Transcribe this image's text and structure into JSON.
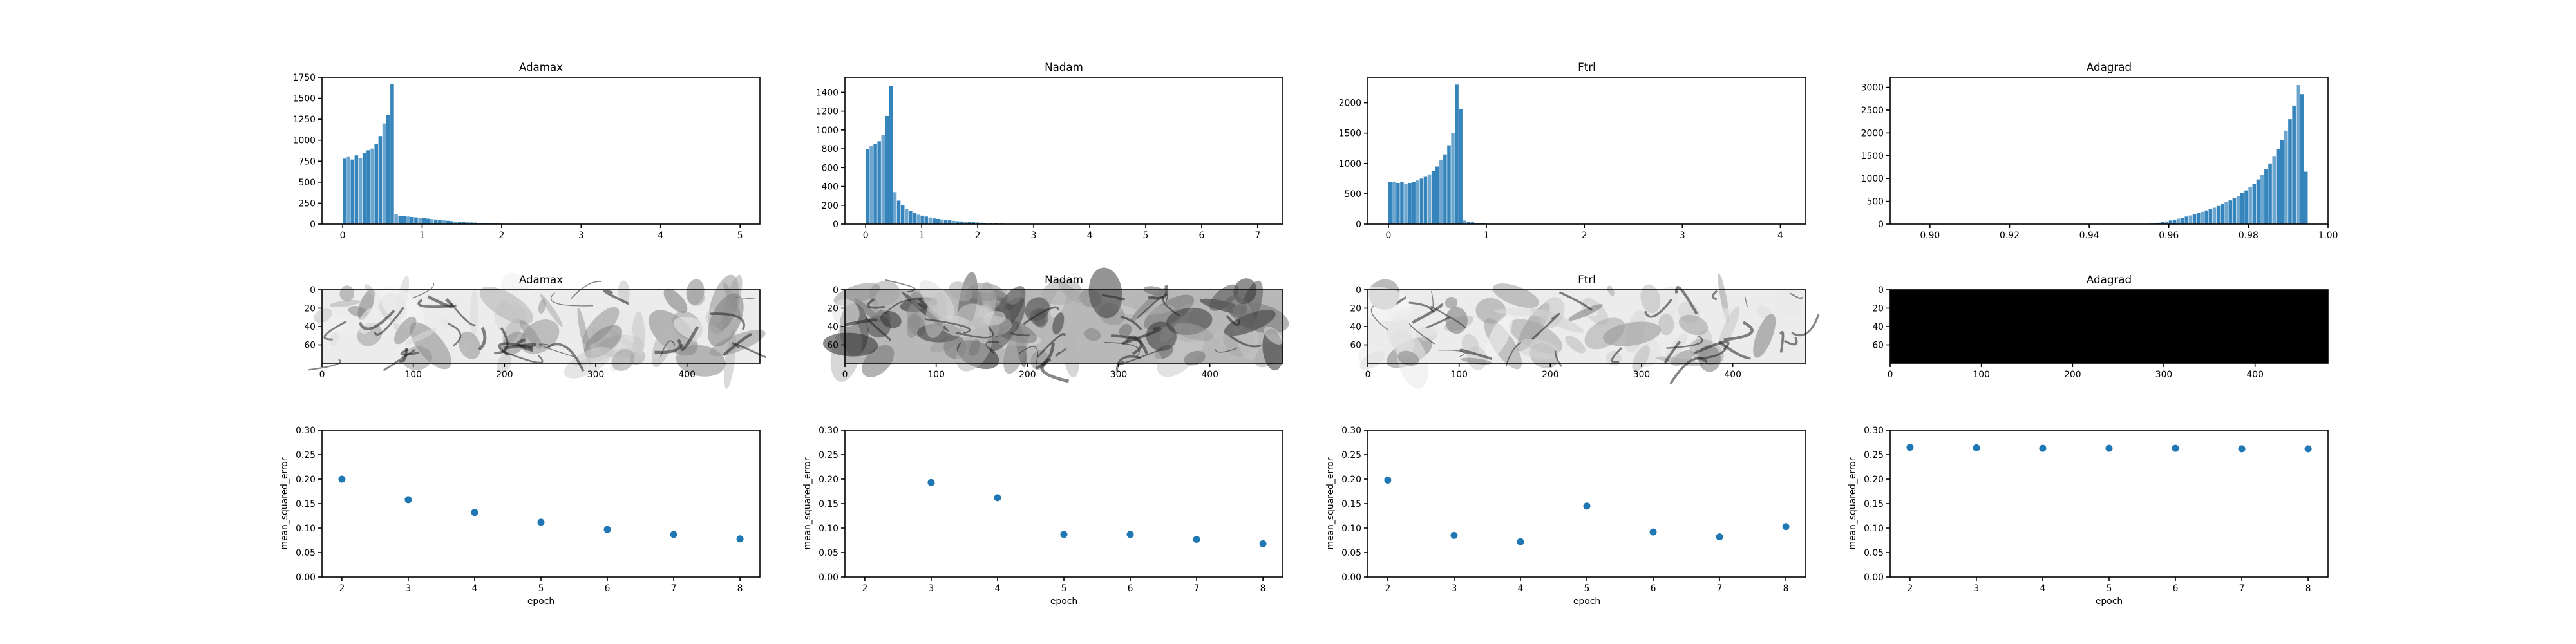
{
  "colors": {
    "accent": "#1f77b4",
    "bar": "#1f77b4",
    "image_dark": "#000000",
    "image_light": "#ffffff"
  },
  "chart_data": [
    {
      "id": "hist-adamax",
      "type": "bar",
      "title": "Adamax",
      "xlabel": "",
      "ylabel": "",
      "xlim": [
        -0.26,
        5.25
      ],
      "ylim": [
        0,
        1750
      ],
      "xticks": [
        0,
        1,
        2,
        3,
        4,
        5
      ],
      "xtick_labels": [
        "0",
        "1",
        "2",
        "3",
        "4",
        "5"
      ],
      "yticks": [
        0,
        250,
        500,
        750,
        1000,
        1250,
        1500,
        1750
      ],
      "ytick_labels": [
        "0",
        "250",
        "500",
        "750",
        "1000",
        "1250",
        "1500",
        "1750"
      ],
      "bin_width": 0.05,
      "categories": [
        0.0,
        0.05,
        0.1,
        0.15,
        0.2,
        0.25,
        0.3,
        0.35,
        0.4,
        0.45,
        0.5,
        0.55,
        0.6,
        0.65,
        0.7,
        0.75,
        0.8,
        0.85,
        0.9,
        0.95,
        1.0,
        1.05,
        1.1,
        1.15,
        1.2,
        1.25,
        1.3,
        1.35,
        1.4,
        1.45,
        1.5,
        1.55,
        1.6,
        1.65,
        1.7,
        1.75,
        1.8,
        1.85,
        1.9,
        1.95,
        2.0,
        2.1,
        2.2,
        2.3
      ],
      "values": [
        780,
        800,
        770,
        820,
        790,
        850,
        880,
        900,
        960,
        1050,
        1200,
        1300,
        1670,
        120,
        100,
        95,
        90,
        85,
        80,
        75,
        70,
        65,
        60,
        55,
        50,
        45,
        40,
        35,
        30,
        28,
        25,
        22,
        20,
        18,
        15,
        12,
        10,
        9,
        8,
        6,
        5,
        4,
        3,
        2
      ]
    },
    {
      "id": "hist-nadam",
      "type": "bar",
      "title": "Nadam",
      "xlabel": "",
      "ylabel": "",
      "xlim": [
        -0.37,
        7.45
      ],
      "ylim": [
        0,
        1560
      ],
      "xticks": [
        0,
        1,
        2,
        3,
        4,
        5,
        6,
        7
      ],
      "xtick_labels": [
        "0",
        "1",
        "2",
        "3",
        "4",
        "5",
        "6",
        "7"
      ],
      "yticks": [
        0,
        200,
        400,
        600,
        800,
        1000,
        1200,
        1400
      ],
      "ytick_labels": [
        "0",
        "200",
        "400",
        "600",
        "800",
        "1000",
        "1200",
        "1400"
      ],
      "bin_width": 0.07,
      "categories": [
        0.0,
        0.07,
        0.14,
        0.21,
        0.28,
        0.35,
        0.42,
        0.49,
        0.56,
        0.63,
        0.7,
        0.77,
        0.84,
        0.91,
        0.98,
        1.05,
        1.12,
        1.19,
        1.26,
        1.33,
        1.4,
        1.47,
        1.54,
        1.61,
        1.68,
        1.75,
        1.82,
        1.89,
        1.96,
        2.03,
        2.1,
        2.2,
        2.3,
        2.4,
        2.5,
        2.6
      ],
      "values": [
        800,
        830,
        850,
        880,
        950,
        1150,
        1470,
        340,
        250,
        200,
        160,
        140,
        120,
        100,
        90,
        80,
        70,
        60,
        55,
        50,
        45,
        40,
        35,
        30,
        28,
        25,
        22,
        20,
        18,
        15,
        12,
        10,
        8,
        6,
        4,
        3
      ]
    },
    {
      "id": "hist-ftrl",
      "type": "bar",
      "title": "Ftrl",
      "xlabel": "",
      "ylabel": "",
      "xlim": [
        -0.21,
        4.26
      ],
      "ylim": [
        0,
        2420
      ],
      "xticks": [
        0,
        1,
        2,
        3,
        4
      ],
      "xtick_labels": [
        "0",
        "1",
        "2",
        "3",
        "4"
      ],
      "yticks": [
        0,
        500,
        1000,
        1500,
        2000
      ],
      "ytick_labels": [
        "0",
        "500",
        "1000",
        "1500",
        "2000"
      ],
      "bin_width": 0.04,
      "categories": [
        0.0,
        0.04,
        0.08,
        0.12,
        0.16,
        0.2,
        0.24,
        0.28,
        0.32,
        0.36,
        0.4,
        0.44,
        0.48,
        0.52,
        0.56,
        0.6,
        0.64,
        0.68,
        0.72,
        0.76,
        0.8,
        0.84,
        0.88,
        0.92,
        0.96,
        1.0,
        1.04
      ],
      "values": [
        700,
        690,
        680,
        690,
        670,
        680,
        700,
        720,
        750,
        780,
        820,
        880,
        950,
        1050,
        1150,
        1300,
        1500,
        2300,
        1900,
        60,
        40,
        30,
        20,
        15,
        10,
        6,
        4
      ]
    },
    {
      "id": "hist-adagrad",
      "type": "bar",
      "title": "Adagrad",
      "xlabel": "",
      "ylabel": "",
      "xlim": [
        0.89,
        1.0
      ],
      "ylim": [
        0,
        3220
      ],
      "xticks": [
        0.9,
        0.92,
        0.94,
        0.96,
        0.98,
        1.0
      ],
      "xtick_labels": [
        "0.90",
        "0.92",
        "0.94",
        "0.96",
        "0.98",
        "1.00"
      ],
      "yticks": [
        0,
        500,
        1000,
        1500,
        2000,
        2500,
        3000
      ],
      "ytick_labels": [
        "0",
        "500",
        "1000",
        "1500",
        "2000",
        "2500",
        "3000"
      ],
      "bin_width": 0.001,
      "categories": [
        0.955,
        0.956,
        0.957,
        0.958,
        0.959,
        0.96,
        0.961,
        0.962,
        0.963,
        0.964,
        0.965,
        0.966,
        0.967,
        0.968,
        0.969,
        0.97,
        0.971,
        0.972,
        0.973,
        0.974,
        0.975,
        0.976,
        0.977,
        0.978,
        0.979,
        0.98,
        0.981,
        0.982,
        0.983,
        0.984,
        0.985,
        0.986,
        0.987,
        0.988,
        0.989,
        0.99,
        0.991,
        0.992,
        0.993,
        0.994
      ],
      "values": [
        10,
        20,
        30,
        45,
        60,
        80,
        100,
        120,
        140,
        165,
        190,
        215,
        240,
        270,
        300,
        330,
        360,
        400,
        440,
        480,
        520,
        570,
        620,
        680,
        740,
        810,
        890,
        980,
        1080,
        1200,
        1330,
        1480,
        1650,
        1850,
        2050,
        2300,
        2600,
        3050,
        2850,
        1150
      ]
    },
    {
      "id": "img-adamax",
      "type": "heatmap",
      "title": "Adamax",
      "cmap": "gray",
      "xlim": [
        0,
        480
      ],
      "ylim": [
        80,
        0
      ],
      "xticks": [
        0,
        100,
        200,
        300,
        400
      ],
      "xtick_labels": [
        "0",
        "100",
        "200",
        "300",
        "400"
      ],
      "yticks": [
        0,
        20,
        40,
        60
      ],
      "ytick_labels": [
        "0",
        "20",
        "40",
        "60"
      ],
      "texture": "mostly-light",
      "seed": 3
    },
    {
      "id": "img-nadam",
      "type": "heatmap",
      "title": "Nadam",
      "cmap": "gray",
      "xlim": [
        0,
        480
      ],
      "ylim": [
        80,
        0
      ],
      "xticks": [
        0,
        100,
        200,
        300,
        400
      ],
      "xtick_labels": [
        "0",
        "100",
        "200",
        "300",
        "400"
      ],
      "yticks": [
        0,
        20,
        40,
        60
      ],
      "ytick_labels": [
        "0",
        "20",
        "40",
        "60"
      ],
      "texture": "mid-gray",
      "seed": 7
    },
    {
      "id": "img-ftrl",
      "type": "heatmap",
      "title": "Ftrl",
      "cmap": "gray",
      "xlim": [
        0,
        480
      ],
      "ylim": [
        80,
        0
      ],
      "xticks": [
        0,
        100,
        200,
        300,
        400
      ],
      "xtick_labels": [
        "0",
        "100",
        "200",
        "300",
        "400"
      ],
      "yticks": [
        0,
        20,
        40,
        60
      ],
      "ytick_labels": [
        "0",
        "20",
        "40",
        "60"
      ],
      "texture": "mostly-light",
      "seed": 11
    },
    {
      "id": "img-adagrad",
      "type": "heatmap",
      "title": "Adagrad",
      "cmap": "gray",
      "xlim": [
        0,
        480
      ],
      "ylim": [
        80,
        0
      ],
      "xticks": [
        0,
        100,
        200,
        300,
        400
      ],
      "xtick_labels": [
        "0",
        "100",
        "200",
        "300",
        "400"
      ],
      "yticks": [
        0,
        20,
        40,
        60
      ],
      "ytick_labels": [
        "0",
        "20",
        "40",
        "60"
      ],
      "texture": "black",
      "seed": 0
    },
    {
      "id": "mse-adamax",
      "type": "scatter",
      "title": "",
      "xlabel": "epoch",
      "ylabel": "mean_squared_error",
      "xlim": [
        1.7,
        8.3
      ],
      "ylim": [
        0,
        0.3
      ],
      "xticks": [
        2,
        3,
        4,
        5,
        6,
        7,
        8
      ],
      "xtick_labels": [
        "2",
        "3",
        "4",
        "5",
        "6",
        "7",
        "8"
      ],
      "yticks": [
        0,
        0.05,
        0.1,
        0.15,
        0.2,
        0.25,
        0.3
      ],
      "ytick_labels": [
        "0.00",
        "0.05",
        "0.10",
        "0.15",
        "0.20",
        "0.25",
        "0.30"
      ],
      "x": [
        2,
        3,
        4,
        5,
        6,
        7,
        8
      ],
      "y": [
        0.2,
        0.158,
        0.132,
        0.112,
        0.097,
        0.087,
        0.078
      ]
    },
    {
      "id": "mse-nadam",
      "type": "scatter",
      "title": "",
      "xlabel": "epoch",
      "ylabel": "mean_squared_error",
      "xlim": [
        1.7,
        8.3
      ],
      "ylim": [
        0,
        0.3
      ],
      "xticks": [
        2,
        3,
        4,
        5,
        6,
        7,
        8
      ],
      "xtick_labels": [
        "2",
        "3",
        "4",
        "5",
        "6",
        "7",
        "8"
      ],
      "yticks": [
        0,
        0.05,
        0.1,
        0.15,
        0.2,
        0.25,
        0.3
      ],
      "ytick_labels": [
        "0.00",
        "0.05",
        "0.10",
        "0.15",
        "0.20",
        "0.25",
        "0.30"
      ],
      "x": [
        3,
        4,
        5,
        6,
        7,
        8
      ],
      "y": [
        0.193,
        0.162,
        0.087,
        0.087,
        0.077,
        0.068
      ]
    },
    {
      "id": "mse-ftrl",
      "type": "scatter",
      "title": "",
      "xlabel": "epoch",
      "ylabel": "mean_squared_error",
      "xlim": [
        1.7,
        8.3
      ],
      "ylim": [
        0,
        0.3
      ],
      "xticks": [
        2,
        3,
        4,
        5,
        6,
        7,
        8
      ],
      "xtick_labels": [
        "2",
        "3",
        "4",
        "5",
        "6",
        "7",
        "8"
      ],
      "yticks": [
        0,
        0.05,
        0.1,
        0.15,
        0.2,
        0.25,
        0.3
      ],
      "ytick_labels": [
        "0.00",
        "0.05",
        "0.10",
        "0.15",
        "0.20",
        "0.25",
        "0.30"
      ],
      "x": [
        2,
        3,
        4,
        5,
        6,
        7,
        8
      ],
      "y": [
        0.198,
        0.085,
        0.072,
        0.145,
        0.092,
        0.082,
        0.103
      ]
    },
    {
      "id": "mse-adagrad",
      "type": "scatter",
      "title": "",
      "xlabel": "epoch",
      "ylabel": "mean_squared_error",
      "xlim": [
        1.7,
        8.3
      ],
      "ylim": [
        0,
        0.3
      ],
      "xticks": [
        2,
        3,
        4,
        5,
        6,
        7,
        8
      ],
      "xtick_labels": [
        "2",
        "3",
        "4",
        "5",
        "6",
        "7",
        "8"
      ],
      "yticks": [
        0,
        0.05,
        0.1,
        0.15,
        0.2,
        0.25,
        0.3
      ],
      "ytick_labels": [
        "0.00",
        "0.05",
        "0.10",
        "0.15",
        "0.20",
        "0.25",
        "0.30"
      ],
      "x": [
        2,
        3,
        4,
        5,
        6,
        7,
        8
      ],
      "y": [
        0.265,
        0.264,
        0.263,
        0.263,
        0.263,
        0.262,
        0.262
      ]
    }
  ]
}
